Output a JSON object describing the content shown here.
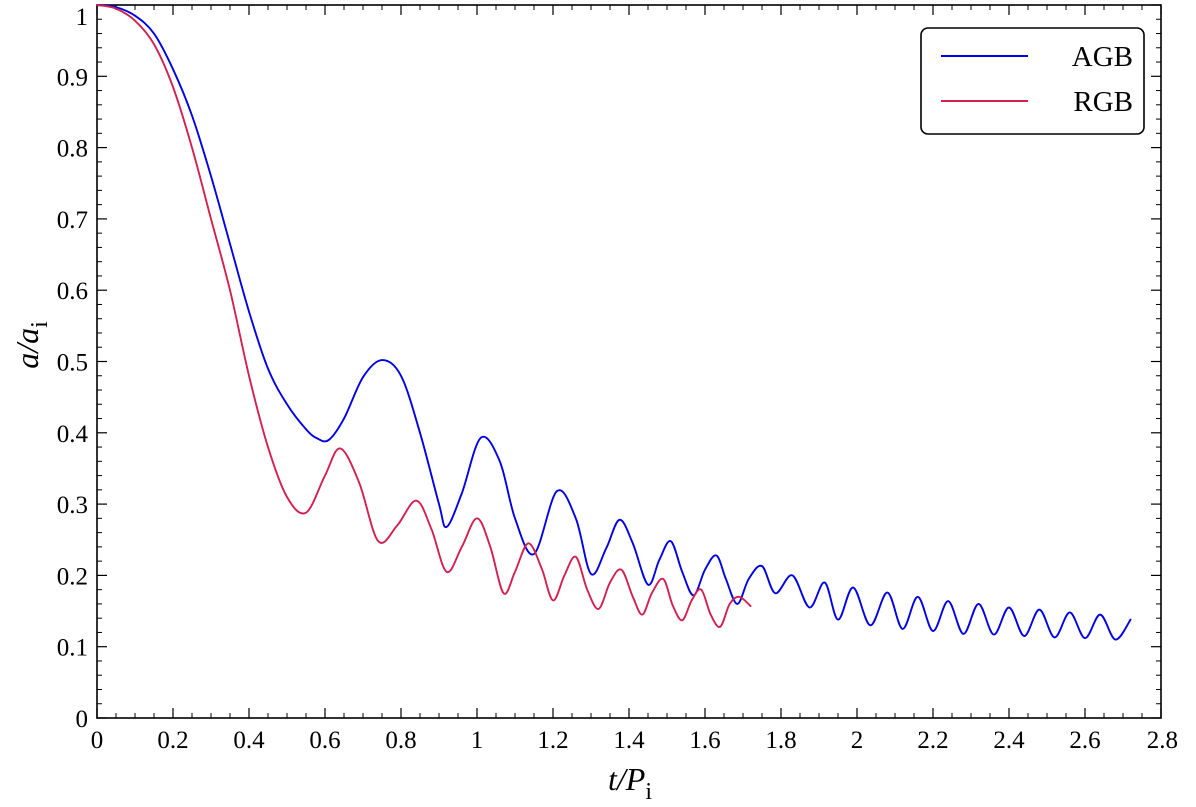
{
  "chart_data": {
    "type": "line",
    "xlabel": {
      "var": "t/P",
      "sub": "i"
    },
    "ylabel": {
      "var": "a/a",
      "sub": "i"
    },
    "xlim": [
      0,
      2.8
    ],
    "ylim": [
      0,
      1.0
    ],
    "xticks": [
      0,
      0.2,
      0.4,
      0.6,
      0.8,
      1,
      1.2,
      1.4,
      1.6,
      1.8,
      2,
      2.2,
      2.4,
      2.6,
      2.8
    ],
    "xtick_labels": [
      "0",
      "0.2",
      "0.4",
      "0.6",
      "0.8",
      "1",
      "1.2",
      "1.4",
      "1.6",
      "1.8",
      "2",
      "2.2",
      "2.4",
      "2.6",
      "2.8"
    ],
    "yticks": [
      0,
      0.1,
      0.2,
      0.3,
      0.4,
      0.5,
      0.6,
      0.7,
      0.8,
      0.9,
      1
    ],
    "ytick_labels": [
      "0",
      "0.1",
      "0.2",
      "0.3",
      "0.4",
      "0.5",
      "0.6",
      "0.7",
      "0.8",
      "0.9",
      "1"
    ],
    "grid": false,
    "legend_position": "top-right",
    "series": [
      {
        "name": "AGB",
        "color": "#0000e6",
        "x": [
          0,
          0.05,
          0.1,
          0.15,
          0.2,
          0.25,
          0.3,
          0.35,
          0.4,
          0.45,
          0.5,
          0.55,
          0.58,
          0.61,
          0.65,
          0.7,
          0.75,
          0.8,
          0.85,
          0.9,
          0.92,
          0.96,
          1.01,
          1.06,
          1.1,
          1.15,
          1.21,
          1.26,
          1.3,
          1.34,
          1.375,
          1.41,
          1.45,
          1.48,
          1.51,
          1.54,
          1.57,
          1.6,
          1.63,
          1.655,
          1.685,
          1.715,
          1.75,
          1.785,
          1.83,
          1.875,
          1.915,
          1.95,
          1.99,
          2.035,
          2.08,
          2.12,
          2.16,
          2.2,
          2.24,
          2.28,
          2.32,
          2.36,
          2.4,
          2.44,
          2.48,
          2.52,
          2.56,
          2.6,
          2.64,
          2.68,
          2.72
        ],
        "y": [
          1.0,
          0.997,
          0.985,
          0.96,
          0.91,
          0.845,
          0.76,
          0.665,
          0.57,
          0.49,
          0.44,
          0.405,
          0.392,
          0.39,
          0.42,
          0.478,
          0.502,
          0.48,
          0.4,
          0.3,
          0.268,
          0.315,
          0.393,
          0.36,
          0.28,
          0.23,
          0.318,
          0.28,
          0.202,
          0.238,
          0.278,
          0.245,
          0.187,
          0.222,
          0.248,
          0.205,
          0.172,
          0.208,
          0.228,
          0.195,
          0.16,
          0.195,
          0.213,
          0.175,
          0.2,
          0.155,
          0.19,
          0.138,
          0.183,
          0.13,
          0.176,
          0.125,
          0.17,
          0.122,
          0.164,
          0.118,
          0.16,
          0.117,
          0.155,
          0.115,
          0.152,
          0.113,
          0.148,
          0.112,
          0.145,
          0.11,
          0.138
        ]
      },
      {
        "name": "RGB",
        "color": "#d2214f",
        "x": [
          0,
          0.05,
          0.1,
          0.15,
          0.2,
          0.25,
          0.3,
          0.35,
          0.4,
          0.45,
          0.5,
          0.55,
          0.6,
          0.64,
          0.69,
          0.74,
          0.79,
          0.84,
          0.88,
          0.92,
          0.96,
          1.0,
          1.035,
          1.07,
          1.1,
          1.135,
          1.17,
          1.2,
          1.23,
          1.26,
          1.29,
          1.32,
          1.35,
          1.38,
          1.41,
          1.435,
          1.46,
          1.49,
          1.515,
          1.54,
          1.565,
          1.59,
          1.615,
          1.64,
          1.665,
          1.69,
          1.72
        ],
        "y": [
          1.0,
          0.995,
          0.978,
          0.945,
          0.885,
          0.8,
          0.7,
          0.6,
          0.48,
          0.38,
          0.31,
          0.288,
          0.34,
          0.378,
          0.33,
          0.248,
          0.27,
          0.305,
          0.265,
          0.205,
          0.24,
          0.28,
          0.24,
          0.175,
          0.205,
          0.245,
          0.21,
          0.165,
          0.2,
          0.226,
          0.18,
          0.153,
          0.19,
          0.208,
          0.17,
          0.145,
          0.175,
          0.195,
          0.158,
          0.137,
          0.165,
          0.18,
          0.145,
          0.128,
          0.16,
          0.17,
          0.157
        ]
      }
    ]
  }
}
